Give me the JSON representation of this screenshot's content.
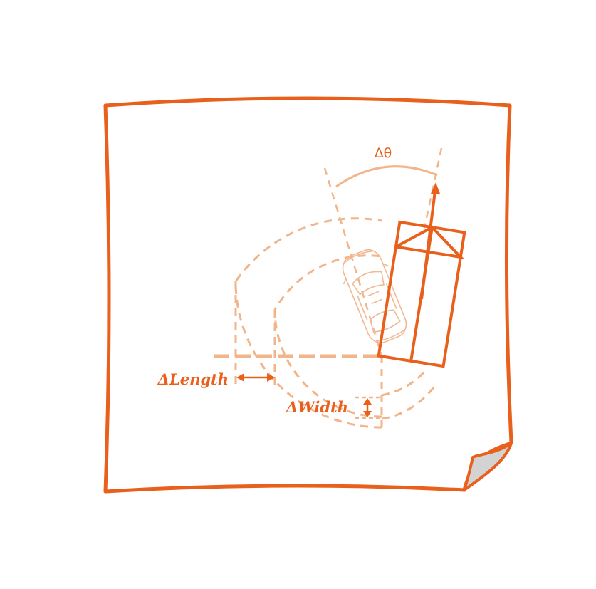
{
  "labels": {
    "delta_theta": "Δθ",
    "delta_length": "ΔLength",
    "delta_width": "ΔWidth"
  },
  "colors": {
    "accent": "#e8601c",
    "accent_light": "#f2b48a",
    "car_outline": "#efb994",
    "page_curl": "#d3d3d3",
    "background": "#ffffff"
  },
  "icons": {
    "car": "car-top-view-icon",
    "page_curl": "page-curl-icon"
  }
}
